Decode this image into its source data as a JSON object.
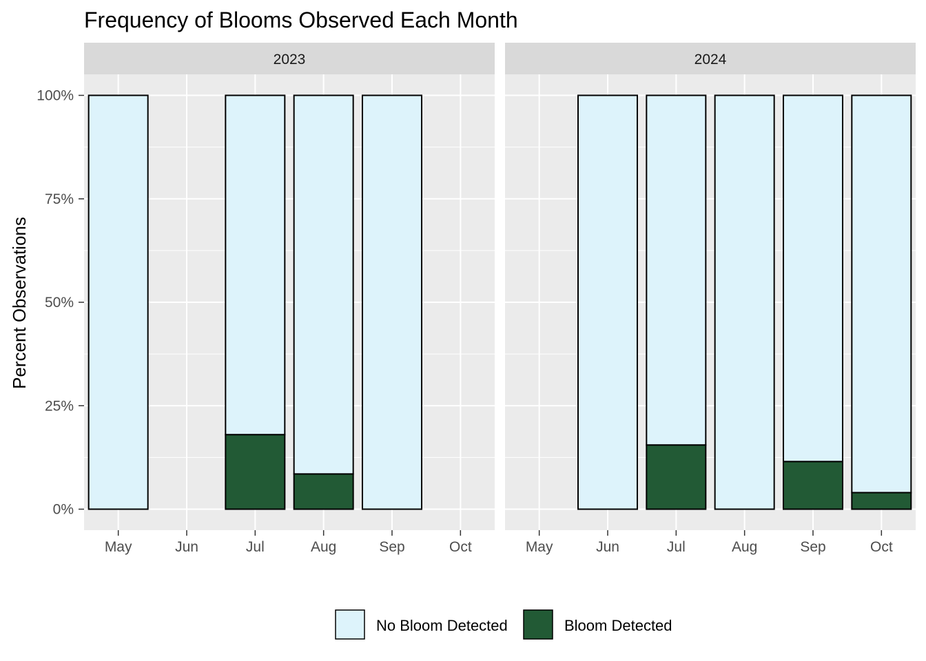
{
  "chart_data": {
    "type": "bar",
    "stacked": true,
    "title": "Frequency of Blooms Observed Each Month",
    "ylabel": "Percent Observations",
    "xlabel": "",
    "ylim": [
      0,
      1
    ],
    "y_ticks": [
      0,
      0.25,
      0.5,
      0.75,
      1.0
    ],
    "y_tick_labels": [
      "0%",
      "25%",
      "50%",
      "75%",
      "100%"
    ],
    "categories": [
      "May",
      "Jun",
      "Jul",
      "Aug",
      "Sep",
      "Oct"
    ],
    "legend": {
      "position": "bottom",
      "entries": [
        {
          "name": "No Bloom Detected",
          "color": "#ddf3fb"
        },
        {
          "name": "Bloom Detected",
          "color": "#225a35"
        }
      ]
    },
    "grid": true,
    "facets": [
      {
        "label": "2023",
        "bars": [
          {
            "month": "May",
            "bloom": 0.0,
            "no_bloom": 1.0
          },
          {
            "month": "Jul",
            "bloom": 0.18,
            "no_bloom": 0.82
          },
          {
            "month": "Aug",
            "bloom": 0.085,
            "no_bloom": 0.915
          },
          {
            "month": "Sep",
            "bloom": 0.0,
            "no_bloom": 1.0
          }
        ]
      },
      {
        "label": "2024",
        "bars": [
          {
            "month": "Jun",
            "bloom": 0.0,
            "no_bloom": 1.0
          },
          {
            "month": "Jul",
            "bloom": 0.155,
            "no_bloom": 0.845
          },
          {
            "month": "Aug",
            "bloom": 0.0,
            "no_bloom": 1.0
          },
          {
            "month": "Sep",
            "bloom": 0.115,
            "no_bloom": 0.885
          },
          {
            "month": "Oct",
            "bloom": 0.04,
            "no_bloom": 0.96
          }
        ]
      }
    ]
  }
}
